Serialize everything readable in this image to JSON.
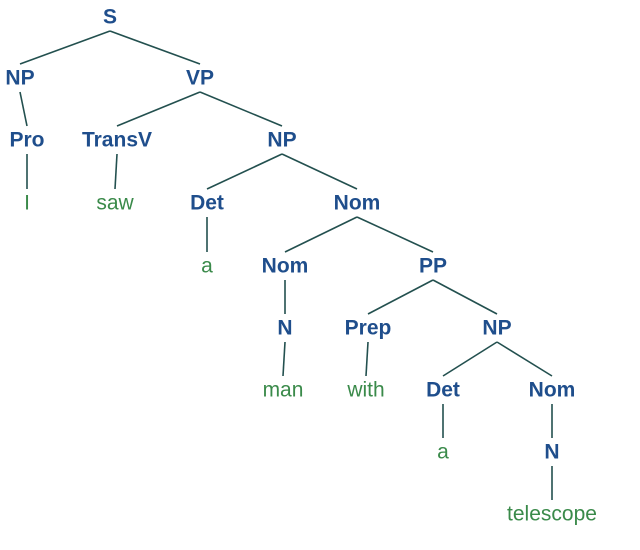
{
  "colors": {
    "nonterminal": "#1f4e8c",
    "terminal": "#3a8a4a",
    "edge": "#23504f"
  },
  "tree": {
    "label": "S",
    "children": [
      {
        "label": "NP",
        "children": [
          {
            "label": "Pro",
            "children": [
              {
                "label": "I",
                "terminal": true
              }
            ]
          }
        ]
      },
      {
        "label": "VP",
        "children": [
          {
            "label": "TransV",
            "children": [
              {
                "label": "saw",
                "terminal": true
              }
            ]
          },
          {
            "label": "NP",
            "children": [
              {
                "label": "Det",
                "children": [
                  {
                    "label": "a",
                    "terminal": true
                  }
                ]
              },
              {
                "label": "Nom",
                "children": [
                  {
                    "label": "Nom",
                    "children": [
                      {
                        "label": "N",
                        "children": [
                          {
                            "label": "man",
                            "terminal": true
                          }
                        ]
                      }
                    ]
                  },
                  {
                    "label": "PP",
                    "children": [
                      {
                        "label": "Prep",
                        "children": [
                          {
                            "label": "with",
                            "terminal": true
                          }
                        ]
                      },
                      {
                        "label": "NP",
                        "children": [
                          {
                            "label": "Det",
                            "children": [
                              {
                                "label": "a",
                                "terminal": true
                              }
                            ]
                          },
                          {
                            "label": "Nom",
                            "children": [
                              {
                                "label": "N",
                                "children": [
                                  {
                                    "label": "telescope",
                                    "terminal": true
                                  }
                                ]
                              }
                            ]
                          }
                        ]
                      }
                    ]
                  }
                ]
              }
            ]
          }
        ]
      }
    ]
  }
}
